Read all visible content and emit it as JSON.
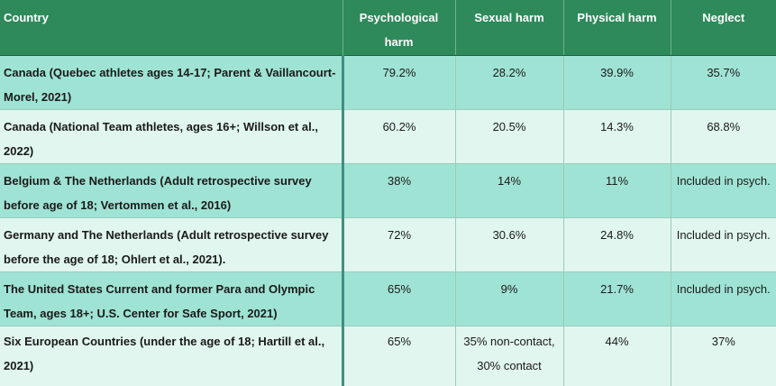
{
  "table": {
    "headers": [
      "Country",
      "Psychological harm",
      "Sexual harm",
      "Physical harm",
      "Neglect"
    ],
    "rows": [
      [
        "Canada (Quebec athletes ages 14-17; Parent & Vaillancourt-Morel, 2021)",
        "79.2%",
        "28.2%",
        "39.9%",
        "35.7%"
      ],
      [
        "Canada (National Team athletes, ages 16+; Willson et al., 2022)",
        "60.2%",
        "20.5%",
        "14.3%",
        "68.8%"
      ],
      [
        "Belgium & The Netherlands (Adult retrospective survey before age of 18; Vertommen et al., 2016)",
        "38%",
        "14%",
        "11%",
        "Included in psych."
      ],
      [
        "Germany and The Netherlands (Adult retrospective survey before the age of 18; Ohlert et al., 2021).",
        "72%",
        "30.6%",
        "24.8%",
        "Included in psych."
      ],
      [
        "The United States Current and former Para and Olympic Team, ages 18+; U.S. Center for Safe Sport, 2021)",
        "65%",
        "9%",
        "21.7%",
        "Included in psych."
      ],
      [
        "Six European Countries (under the age of 18; Hartill et al., 2021)",
        "65%",
        "35% non-contact, 30% contact",
        "44%",
        "37%"
      ]
    ]
  }
}
